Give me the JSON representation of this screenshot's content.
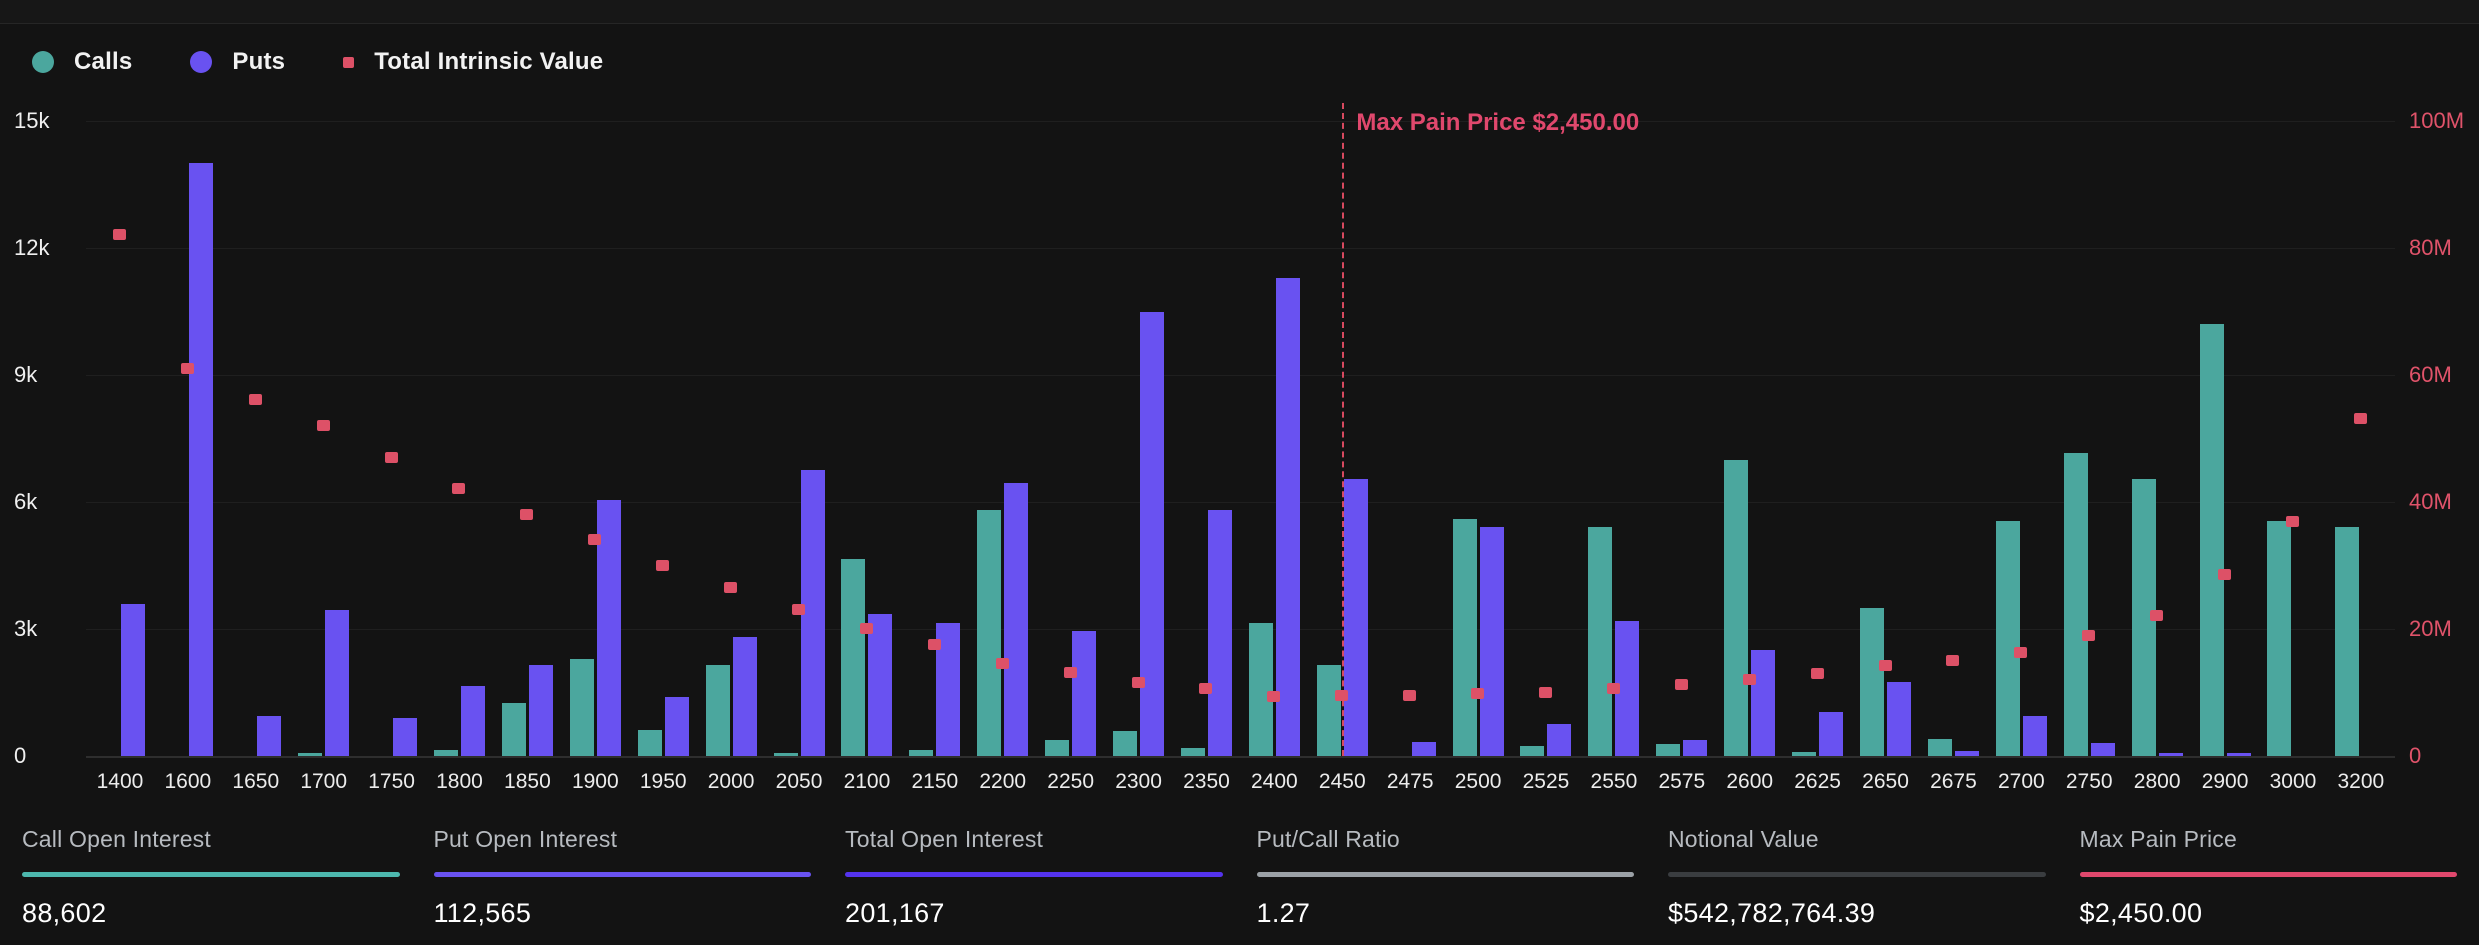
{
  "legend": {
    "items": [
      {
        "name": "calls",
        "label": "Calls",
        "swatch": "circle",
        "color": "#4BA79E"
      },
      {
        "name": "puts",
        "label": "Puts",
        "swatch": "circle",
        "color": "#6952F1"
      },
      {
        "name": "total-intrinsic-value",
        "label": "Total Intrinsic Value",
        "swatch": "square",
        "color": "#DD5167"
      }
    ]
  },
  "chart_data": {
    "type": "bar",
    "title": "",
    "categories": [
      1400,
      1600,
      1650,
      1700,
      1750,
      1800,
      1850,
      1900,
      1950,
      2000,
      2050,
      2100,
      2150,
      2200,
      2250,
      2300,
      2350,
      2400,
      2450,
      2475,
      2500,
      2525,
      2550,
      2575,
      2600,
      2625,
      2650,
      2675,
      2700,
      2750,
      2800,
      2900,
      3000,
      3200
    ],
    "series": [
      {
        "name": "Calls",
        "type": "bar",
        "axis": "left",
        "color": "#4BA79E",
        "values": [
          0,
          0,
          0,
          80,
          0,
          150,
          1250,
          2300,
          620,
          2150,
          70,
          4650,
          150,
          5800,
          380,
          580,
          200,
          3150,
          2150,
          0,
          5600,
          230,
          5400,
          280,
          7000,
          100,
          3500,
          400,
          5550,
          7150,
          6550,
          10200,
          5550,
          5400
        ]
      },
      {
        "name": "Puts",
        "type": "bar",
        "axis": "left",
        "color": "#6952F1",
        "values": [
          3600,
          14000,
          950,
          3450,
          900,
          1650,
          2150,
          6050,
          1400,
          2800,
          6750,
          3350,
          3150,
          6450,
          2950,
          10500,
          5800,
          11300,
          6550,
          330,
          5400,
          750,
          3200,
          380,
          2500,
          1050,
          1750,
          120,
          950,
          300,
          80,
          80,
          0,
          0
        ]
      },
      {
        "name": "Total Intrinsic Value",
        "type": "scatter",
        "axis": "right",
        "color": "#DD5167",
        "values_millions": [
          82,
          61,
          56,
          52,
          47,
          42,
          38,
          34,
          30,
          26.5,
          23,
          20,
          17.5,
          14.5,
          13,
          11.5,
          10.5,
          9.3,
          9.4,
          9.4,
          9.7,
          9.9,
          10.6,
          11.2,
          12,
          12.9,
          14.1,
          15,
          16.3,
          18.9,
          22,
          28.5,
          36.8,
          53
        ]
      }
    ],
    "left_axis": {
      "ticks": [
        "0",
        "3k",
        "6k",
        "9k",
        "12k",
        "15k"
      ],
      "min": 0,
      "max": 15000
    },
    "right_axis": {
      "ticks": [
        "0",
        "20M",
        "40M",
        "60M",
        "80M",
        "100M"
      ],
      "min": 0,
      "max": 100
    },
    "grid": true,
    "legend_position": "top-left",
    "max_pain": {
      "strike": 2450,
      "label": "Max Pain Price $2,450.00"
    }
  },
  "stats": [
    {
      "label": "Call Open Interest",
      "value": "88,602",
      "accent": "#4DB8AE"
    },
    {
      "label": "Put Open Interest",
      "value": "112,565",
      "accent": "#6952F1"
    },
    {
      "label": "Total Open Interest",
      "value": "201,167",
      "accent": "#5433EE"
    },
    {
      "label": "Put/Call Ratio",
      "value": "1.27",
      "accent": "#9BA1A6"
    },
    {
      "label": "Notional Value",
      "value": "$542,782,764.39",
      "accent": "#3A3D40"
    },
    {
      "label": "Max Pain Price",
      "value": "$2,450.00",
      "accent": "#E0486D"
    }
  ]
}
